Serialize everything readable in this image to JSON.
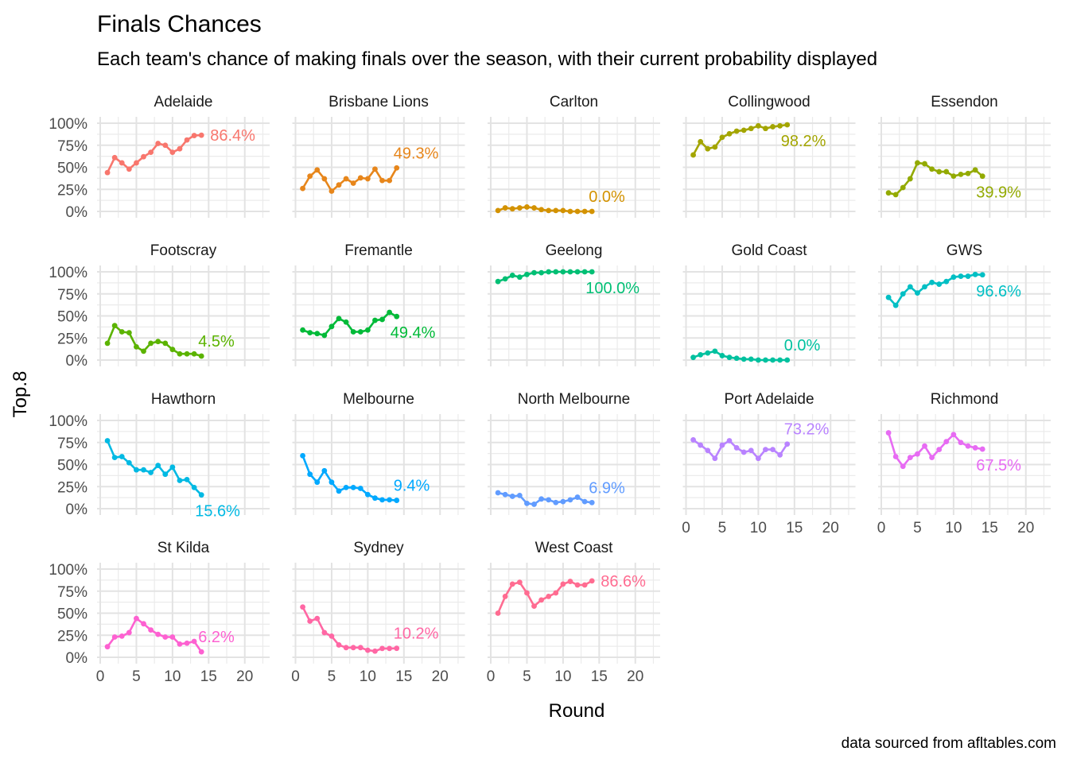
{
  "chart_data": {
    "type": "line",
    "title": "Finals Chances",
    "subtitle": "Each team's chance of making finals over the season, with their current probability displayed",
    "xlabel": "Round",
    "ylabel": "Top.8",
    "caption": "data sourced from afltables.com",
    "xlim": [
      0,
      23
    ],
    "ylim": [
      0,
      1
    ],
    "x_ticks": [
      0,
      5,
      10,
      15,
      20
    ],
    "y_ticks": [
      0,
      0.25,
      0.5,
      0.75,
      1.0
    ],
    "y_tick_labels": [
      "0%",
      "25%",
      "50%",
      "75%",
      "100%"
    ],
    "x_tick_labels": [
      "0",
      "5",
      "10",
      "15",
      "20"
    ],
    "grid": true,
    "legend": "none",
    "panels": [
      {
        "name": "Adelaide",
        "color": "#F8766D",
        "label": "86.4%",
        "label_pos": "right",
        "values": [
          0.44,
          0.61,
          0.55,
          0.48,
          0.55,
          0.62,
          0.67,
          0.77,
          0.75,
          0.67,
          0.71,
          0.81,
          0.86,
          0.864
        ]
      },
      {
        "name": "Brisbane Lions",
        "color": "#E7861B",
        "label": "49.3%",
        "label_pos": "above",
        "values": [
          0.26,
          0.4,
          0.47,
          0.37,
          0.23,
          0.3,
          0.37,
          0.32,
          0.38,
          0.37,
          0.48,
          0.35,
          0.35,
          0.493
        ]
      },
      {
        "name": "Carlton",
        "color": "#D39200",
        "label": "0.0%",
        "label_pos": "above",
        "values": [
          0.01,
          0.04,
          0.03,
          0.04,
          0.05,
          0.04,
          0.02,
          0.01,
          0.01,
          0.01,
          0.0,
          0.0,
          0.0,
          0.0
        ]
      },
      {
        "name": "Collingwood",
        "color": "#A3A500",
        "label": "98.2%",
        "label_pos": "below",
        "values": [
          0.64,
          0.79,
          0.71,
          0.73,
          0.84,
          0.88,
          0.91,
          0.92,
          0.94,
          0.97,
          0.94,
          0.96,
          0.97,
          0.982
        ]
      },
      {
        "name": "Essendon",
        "color": "#93AA00",
        "label": "39.9%",
        "label_pos": "below",
        "values": [
          0.21,
          0.19,
          0.27,
          0.37,
          0.55,
          0.54,
          0.48,
          0.45,
          0.45,
          0.4,
          0.42,
          0.43,
          0.47,
          0.399
        ]
      },
      {
        "name": "Footscray",
        "color": "#5BB300",
        "label": "4.5%",
        "label_pos": "above",
        "values": [
          0.19,
          0.39,
          0.32,
          0.31,
          0.15,
          0.1,
          0.19,
          0.21,
          0.19,
          0.12,
          0.07,
          0.07,
          0.07,
          0.045
        ]
      },
      {
        "name": "Fremantle",
        "color": "#00BA38",
        "label": "49.4%",
        "label_pos": "below",
        "values": [
          0.34,
          0.31,
          0.3,
          0.28,
          0.38,
          0.47,
          0.43,
          0.32,
          0.32,
          0.34,
          0.45,
          0.46,
          0.54,
          0.494
        ]
      },
      {
        "name": "Geelong",
        "color": "#00BF74",
        "label": "100.0%",
        "label_pos": "below",
        "values": [
          0.89,
          0.92,
          0.96,
          0.94,
          0.97,
          0.99,
          0.99,
          1.0,
          1.0,
          1.0,
          1.0,
          1.0,
          1.0,
          1.0
        ]
      },
      {
        "name": "Gold Coast",
        "color": "#00C19F",
        "label": "0.0%",
        "label_pos": "above",
        "values": [
          0.03,
          0.06,
          0.08,
          0.1,
          0.05,
          0.03,
          0.02,
          0.01,
          0.01,
          0.0,
          0.0,
          0.0,
          0.0,
          0.0
        ]
      },
      {
        "name": "GWS",
        "color": "#00BFC4",
        "label": "96.6%",
        "label_pos": "below",
        "values": [
          0.71,
          0.62,
          0.75,
          0.83,
          0.76,
          0.83,
          0.88,
          0.86,
          0.89,
          0.94,
          0.95,
          0.95,
          0.97,
          0.966
        ]
      },
      {
        "name": "Hawthorn",
        "color": "#00B9E3",
        "label": "15.6%",
        "label_pos": "below",
        "values": [
          0.77,
          0.58,
          0.59,
          0.52,
          0.44,
          0.44,
          0.41,
          0.49,
          0.39,
          0.47,
          0.32,
          0.33,
          0.24,
          0.156
        ]
      },
      {
        "name": "Melbourne",
        "color": "#00A9FF",
        "label": "9.4%",
        "label_pos": "above",
        "values": [
          0.6,
          0.39,
          0.3,
          0.43,
          0.3,
          0.2,
          0.24,
          0.24,
          0.23,
          0.16,
          0.12,
          0.1,
          0.1,
          0.094
        ]
      },
      {
        "name": "North Melbourne",
        "color": "#619CFF",
        "label": "6.9%",
        "label_pos": "above",
        "values": [
          0.18,
          0.16,
          0.14,
          0.15,
          0.06,
          0.05,
          0.11,
          0.1,
          0.07,
          0.08,
          0.1,
          0.13,
          0.08,
          0.069
        ]
      },
      {
        "name": "Port Adelaide",
        "color": "#B983FF",
        "label": "73.2%",
        "label_pos": "above",
        "values": [
          0.78,
          0.72,
          0.66,
          0.57,
          0.72,
          0.77,
          0.69,
          0.64,
          0.66,
          0.57,
          0.67,
          0.67,
          0.61,
          0.732
        ]
      },
      {
        "name": "Richmond",
        "color": "#E76BF3",
        "label": "67.5%",
        "label_pos": "below",
        "values": [
          0.86,
          0.59,
          0.48,
          0.58,
          0.62,
          0.71,
          0.58,
          0.67,
          0.76,
          0.84,
          0.75,
          0.71,
          0.69,
          0.675
        ]
      },
      {
        "name": "St Kilda",
        "color": "#FD61D1",
        "label": "6.2%",
        "label_pos": "above",
        "values": [
          0.12,
          0.23,
          0.24,
          0.28,
          0.44,
          0.38,
          0.31,
          0.26,
          0.23,
          0.23,
          0.15,
          0.16,
          0.18,
          0.062
        ]
      },
      {
        "name": "Sydney",
        "color": "#FF67A4",
        "label": "10.2%",
        "label_pos": "above",
        "values": [
          0.57,
          0.41,
          0.44,
          0.28,
          0.24,
          0.14,
          0.11,
          0.11,
          0.11,
          0.08,
          0.07,
          0.1,
          0.1,
          0.102
        ]
      },
      {
        "name": "West Coast",
        "color": "#FF6C91",
        "label": "86.6%",
        "label_pos": "right",
        "values": [
          0.5,
          0.69,
          0.83,
          0.85,
          0.73,
          0.58,
          0.65,
          0.69,
          0.73,
          0.83,
          0.86,
          0.82,
          0.82,
          0.866
        ]
      }
    ]
  }
}
